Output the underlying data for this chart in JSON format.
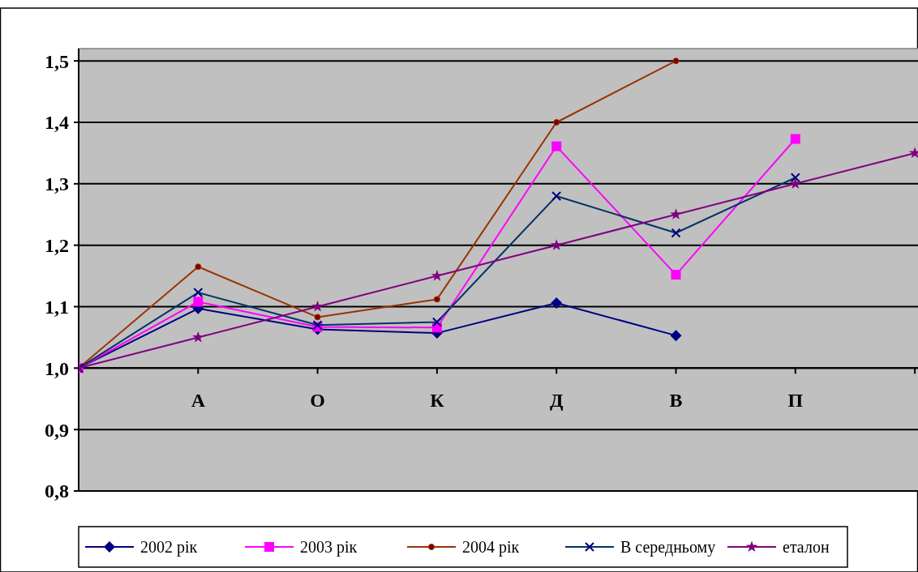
{
  "chart_data": {
    "type": "line",
    "categories": [
      null,
      "А",
      "О",
      "К",
      "Д",
      "В",
      "П",
      null
    ],
    "series": [
      {
        "name": "2002 рік",
        "color": "#000080",
        "marker": "diamond",
        "values": [
          1.0,
          1.097,
          1.063,
          1.057,
          1.106,
          1.053,
          null,
          null
        ]
      },
      {
        "name": "2003 рік",
        "color": "#ff00ff",
        "marker": "square",
        "values": [
          1.0,
          1.108,
          1.067,
          1.066,
          1.361,
          1.152,
          1.373,
          null
        ]
      },
      {
        "name": "2004 рік",
        "color": "#993300",
        "marker": "circle",
        "values": [
          1.0,
          1.165,
          1.083,
          1.112,
          1.4,
          1.5,
          null,
          null
        ]
      },
      {
        "name": "В середньому",
        "color": "#003366",
        "marker": "cross",
        "values": [
          1.0,
          1.123,
          1.07,
          1.075,
          1.28,
          1.22,
          1.31,
          null
        ]
      },
      {
        "name": "еталон",
        "color": "#800080",
        "marker": "star",
        "values": [
          1.0,
          1.05,
          1.1,
          1.15,
          1.2,
          1.25,
          1.3,
          1.35
        ]
      }
    ],
    "ylim": [
      0.8,
      1.52
    ],
    "yticks": [
      {
        "value": 0.8,
        "label": "0,8"
      },
      {
        "value": 0.9,
        "label": "0,9"
      },
      {
        "value": 1.0,
        "label": "1,0"
      },
      {
        "value": 1.1,
        "label": "1,1"
      },
      {
        "value": 1.2,
        "label": "1,2"
      },
      {
        "value": 1.3,
        "label": "1,3"
      },
      {
        "value": 1.4,
        "label": "1,4"
      },
      {
        "value": 1.5,
        "label": "1,5"
      }
    ],
    "grid": "y",
    "legend": "bottom"
  }
}
